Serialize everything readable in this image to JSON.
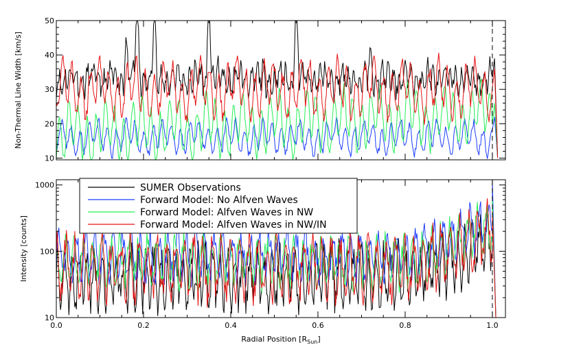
{
  "chart_data": [
    {
      "type": "line",
      "panel": "top",
      "ylabel": "Non-Thermal Line Width [km/s]",
      "xlim": [
        0.0,
        1.03
      ],
      "ylim": [
        9.5,
        50
      ],
      "ytick_labels": [
        "10",
        "20",
        "30",
        "40",
        "50"
      ],
      "reference_line_x": 1.0,
      "grid": false,
      "series": [
        {
          "name": "SUMER Observations",
          "color": "#000000",
          "base": 33.0,
          "amp": 3.0,
          "period": 0.013,
          "noise": 2.5,
          "seed": 11,
          "spikes": [
            [
              0.16,
              46
            ],
            [
              0.185,
              60
            ],
            [
              0.225,
              56
            ],
            [
              0.35,
              60
            ],
            [
              0.55,
              60
            ],
            [
              0.72,
              43
            ]
          ]
        },
        {
          "name": "Forward Model: No Alfven Waves",
          "color": "#1a3cff",
          "base": 16.0,
          "amp": 3.5,
          "period": 0.021,
          "noise": 1.2,
          "seed": 23,
          "end_trend": [
            [
              0.95,
              18
            ]
          ]
        },
        {
          "name": "Forward Model: Alfven Waves in NW",
          "color": "#22ee55",
          "base": 20.0,
          "amp": 6.5,
          "period": 0.021,
          "noise": 1.5,
          "seed": 37,
          "trend": 6.0
        },
        {
          "name": "Forward Model: Alfven Waves in NW/IN",
          "color": "#e61010",
          "base": 30.0,
          "amp": 6.0,
          "period": 0.021,
          "noise": 2.0,
          "seed": 41
        }
      ]
    },
    {
      "type": "line",
      "panel": "bottom",
      "xlabel": "Radial Position [R",
      "xlabel_sub": "Sun",
      "xlabel_end": "]",
      "ylabel": "Intensity [counts]",
      "xlim": [
        0.0,
        1.03
      ],
      "ylim": [
        10,
        1200
      ],
      "yscale": "log",
      "xtick_labels": [
        "0.0",
        "0.2",
        "0.4",
        "0.6",
        "0.8",
        "1.0"
      ],
      "ytick_labels": [
        "10",
        "100",
        "1000"
      ],
      "reference_line_x": 1.0,
      "legend_location": "upper-left",
      "grid": false,
      "series": [
        {
          "name": "SUMER Observations",
          "color": "#000000",
          "base": 40,
          "amp": 0.35,
          "period": 0.017,
          "noise": 0.25,
          "seed": 51,
          "rise": 500
        },
        {
          "name": "Forward Model: No Alfven Waves",
          "color": "#1a3cff",
          "base": 85,
          "amp": 0.3,
          "period": 0.021,
          "noise": 0.18,
          "seed": 63,
          "rise": 1150
        },
        {
          "name": "Forward Model: Alfven Waves in NW",
          "color": "#22ee55",
          "base": 70,
          "amp": 0.3,
          "period": 0.021,
          "noise": 0.18,
          "seed": 71,
          "rise": 600
        },
        {
          "name": "Forward Model: Alfven Waves in NW/IN",
          "color": "#e61010",
          "base": 55,
          "amp": 0.4,
          "period": 0.021,
          "noise": 0.22,
          "seed": 83,
          "rise": 400
        }
      ]
    }
  ]
}
